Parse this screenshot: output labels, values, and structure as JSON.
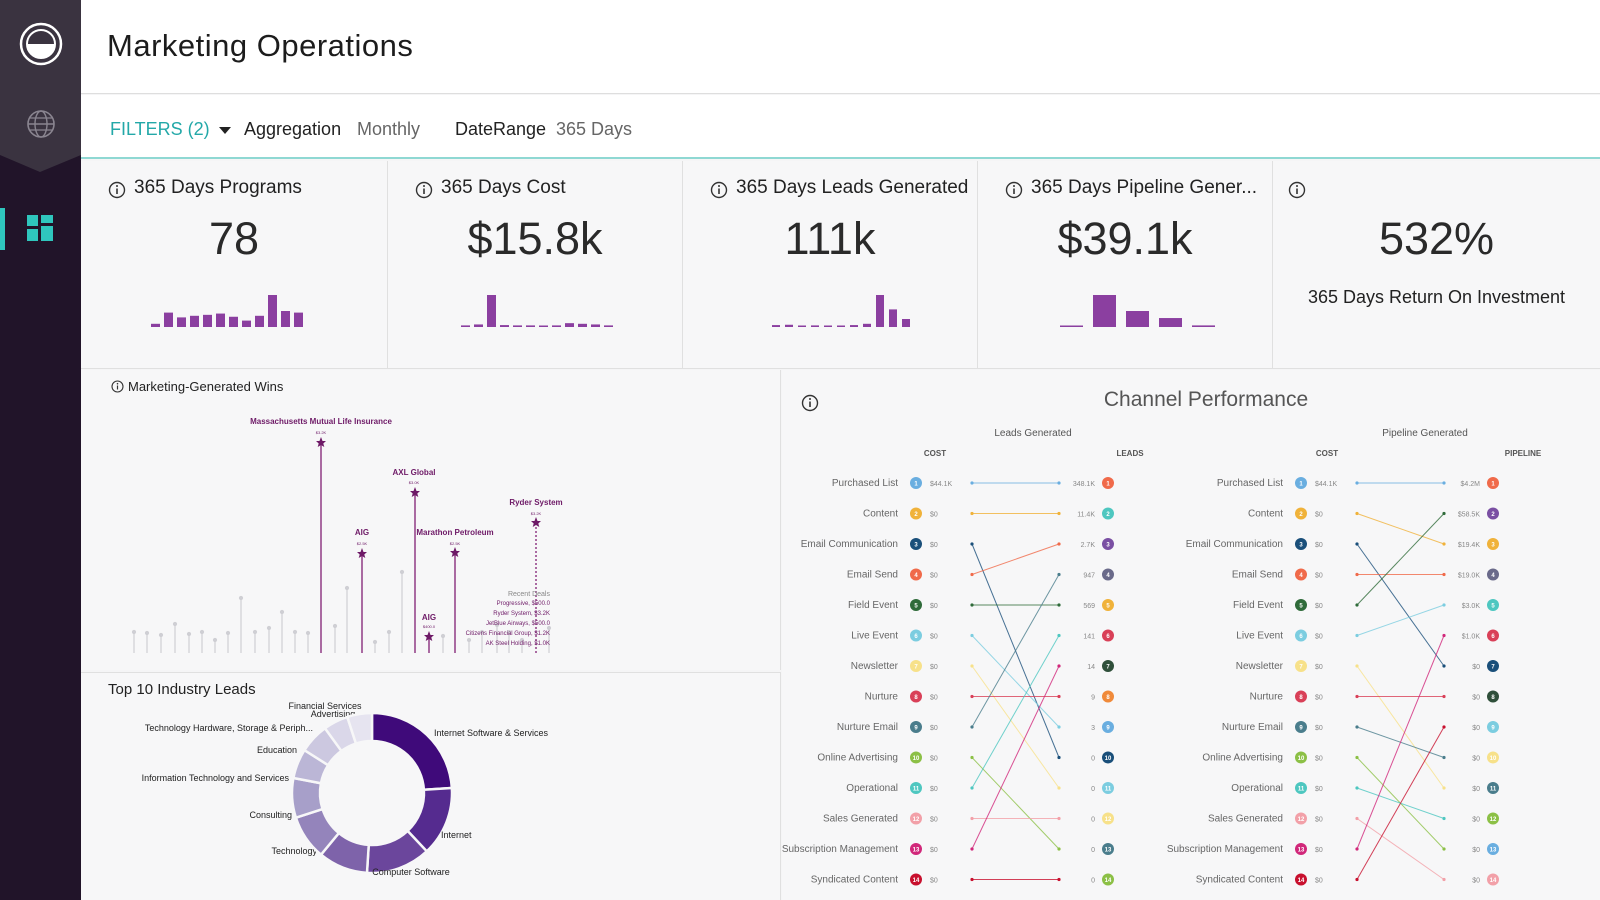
{
  "app": {
    "title": "Marketing Operations"
  },
  "filterbar": {
    "filters_label": "FILTERS (2)",
    "aggregation_label": "Aggregation",
    "aggregation_value": "Monthly",
    "daterange_label": "DateRange",
    "daterange_value": "365 Days"
  },
  "kpis": [
    {
      "label": "365 Days Programs",
      "value": "78",
      "spark": [
        0.1,
        0.45,
        0.3,
        0.35,
        0.38,
        0.42,
        0.32,
        0.2,
        0.35,
        1.0,
        0.5,
        0.45
      ],
      "color": "#8b3fa0"
    },
    {
      "label": "365 Days Cost",
      "value": "$15.8k",
      "spark": [
        0.05,
        0.08,
        1.0,
        0.06,
        0.05,
        0.05,
        0.04,
        0.05,
        0.12,
        0.1,
        0.08,
        0.05
      ],
      "color": "#8b3fa0"
    },
    {
      "label": "365 Days Leads Generated",
      "value": "111k",
      "spark": [
        0.06,
        0.07,
        0.04,
        0.05,
        0.04,
        0.03,
        0.06,
        0.1,
        1.0,
        0.55,
        0.25
      ],
      "color": "#8b3fa0"
    },
    {
      "label": "365 Days Pipeline Gener...",
      "value": "$39.1k",
      "spark": [
        0.03,
        1.0,
        0.5,
        0.28,
        0.05
      ],
      "color": "#8b3fa0"
    },
    {
      "label": "",
      "value": "532%",
      "sub": "365 Days Return On Investment"
    }
  ],
  "wins": {
    "title": "Marketing-Generated Wins",
    "labels": [
      {
        "text": "Massachusetts Mutual Life Insurance",
        "amount": "$3.2K"
      },
      {
        "text": "AXL Global",
        "amount": "$3.0K"
      },
      {
        "text": "AIG",
        "amount": "$2.5K"
      },
      {
        "text": "Marathon Petroleum",
        "amount": "$2.5K"
      },
      {
        "text": "Ryder System",
        "amount": "$3.2K"
      },
      {
        "text": "AIG",
        "amount": "$400.0"
      }
    ],
    "recent_title": "Recent Deals",
    "recent": [
      "Progressive, $500.0",
      "Ryder System, $3.2K",
      "JetBlue Airways, $500.0",
      "Citizens Financial Group, $1.2K",
      "AK Steel Holding, $1.0K"
    ]
  },
  "industry": {
    "title": "Top 10 Industry Leads",
    "segments": [
      {
        "label": "Internet Software & Services",
        "value": 24,
        "color": "#3f0a7a"
      },
      {
        "label": "Internet",
        "value": 14,
        "color": "#552b8f"
      },
      {
        "label": "Computer Software",
        "value": 13,
        "color": "#6b469c"
      },
      {
        "label": "Technology",
        "value": 10,
        "color": "#7e63aa"
      },
      {
        "label": "Consulting",
        "value": 9,
        "color": "#9484bb"
      },
      {
        "label": "Information Technology and Services",
        "value": 8,
        "color": "#a79fc9"
      },
      {
        "label": "Education",
        "value": 6,
        "color": "#bbb6d6"
      },
      {
        "label": "Technology Hardware, Storage & Periph...",
        "value": 6,
        "color": "#ccc8e0"
      },
      {
        "label": "Advertising",
        "value": 5,
        "color": "#dad7e9"
      },
      {
        "label": "Financial Services",
        "value": 5,
        "color": "#e6e4f0"
      }
    ]
  },
  "channel": {
    "title": "Channel Performance",
    "left_title": "Leads Generated",
    "right_title": "Pipeline Generated",
    "cost_header": "COST",
    "leads_header": "LEADS",
    "pipeline_header": "PIPELINE",
    "rows": [
      {
        "name": "Purchased List",
        "color": "#6aaee0",
        "cost": "$44.1K"
      },
      {
        "name": "Content",
        "color": "#f0b23a",
        "cost": "$0"
      },
      {
        "name": "Email Communication",
        "color": "#1a4f7a",
        "cost": "$0"
      },
      {
        "name": "Email Send",
        "color": "#f06a4a",
        "cost": "$0"
      },
      {
        "name": "Field Event",
        "color": "#2f6b3a",
        "cost": "$0"
      },
      {
        "name": "Live Event",
        "color": "#7ccde0",
        "cost": "$0"
      },
      {
        "name": "Newsletter",
        "color": "#f7e18a",
        "cost": "$0"
      },
      {
        "name": "Nurture",
        "color": "#d94058",
        "cost": "$0"
      },
      {
        "name": "Nurture Email",
        "color": "#4a7d8c",
        "cost": "$0"
      },
      {
        "name": "Online Advertising",
        "color": "#8cc046",
        "cost": "$0"
      },
      {
        "name": "Operational",
        "color": "#4ec7c0",
        "cost": "$0"
      },
      {
        "name": "Sales Generated",
        "color": "#f2a0a8",
        "cost": "$0"
      },
      {
        "name": "Subscription Management",
        "color": "#d1277a",
        "cost": "$0"
      },
      {
        "name": "Syndicated Content",
        "color": "#c8102e",
        "cost": "$0"
      }
    ],
    "leads": [
      {
        "label": "348.1K",
        "num": "1",
        "color": "#f06a4a"
      },
      {
        "label": "11.4K",
        "num": "2",
        "color": "#4ec7c0"
      },
      {
        "label": "2.7K",
        "num": "3",
        "color": "#7a4fa3"
      },
      {
        "label": "947",
        "num": "4",
        "color": "#6a6a8a"
      },
      {
        "label": "569",
        "num": "5",
        "color": "#f0b23a"
      },
      {
        "label": "141",
        "num": "6",
        "color": "#d94058"
      },
      {
        "label": "14",
        "num": "7",
        "color": "#2f4f3a"
      },
      {
        "label": "9",
        "num": "8",
        "color": "#f08a3a"
      },
      {
        "label": "3",
        "num": "9",
        "color": "#6aaee0"
      },
      {
        "label": "0",
        "num": "10",
        "color": "#1a4f7a"
      },
      {
        "label": "0",
        "num": "11",
        "color": "#7ccde0"
      },
      {
        "label": "0",
        "num": "12",
        "color": "#f7e18a"
      },
      {
        "label": "0",
        "num": "13",
        "color": "#4a7d8c"
      },
      {
        "label": "0",
        "num": "14",
        "color": "#8cc046"
      }
    ],
    "pipeline": [
      {
        "label": "$4.2M",
        "num": "1",
        "color": "#f06a4a"
      },
      {
        "label": "$58.5K",
        "num": "2",
        "color": "#7a4fa3"
      },
      {
        "label": "$19.4K",
        "num": "3",
        "color": "#f0b23a"
      },
      {
        "label": "$19.0K",
        "num": "4",
        "color": "#6a6a8a"
      },
      {
        "label": "$3.0K",
        "num": "5",
        "color": "#4ec7c0"
      },
      {
        "label": "$1.0K",
        "num": "6",
        "color": "#d94058"
      },
      {
        "label": "$0",
        "num": "7",
        "color": "#1a4f7a"
      },
      {
        "label": "$0",
        "num": "8",
        "color": "#2f4f3a"
      },
      {
        "label": "$0",
        "num": "9",
        "color": "#7ccde0"
      },
      {
        "label": "$0",
        "num": "10",
        "color": "#f7e18a"
      },
      {
        "label": "$0",
        "num": "11",
        "color": "#4a7d8c"
      },
      {
        "label": "$0",
        "num": "12",
        "color": "#8cc046"
      },
      {
        "label": "$0",
        "num": "13",
        "color": "#6aaee0"
      },
      {
        "label": "$0",
        "num": "14",
        "color": "#f2a0a8"
      }
    ],
    "leads_map": [
      0,
      1,
      9,
      2,
      4,
      8,
      10,
      7,
      3,
      12,
      5,
      11,
      6,
      13
    ],
    "pipeline_map": [
      0,
      2,
      6,
      3,
      1,
      4,
      10,
      7,
      9,
      12,
      11,
      13,
      5,
      8
    ]
  },
  "icons": {
    "logo": "app-logo-icon",
    "globe": "globe-icon",
    "dashboard": "dashboard-grid-icon",
    "info": "info-icon"
  }
}
